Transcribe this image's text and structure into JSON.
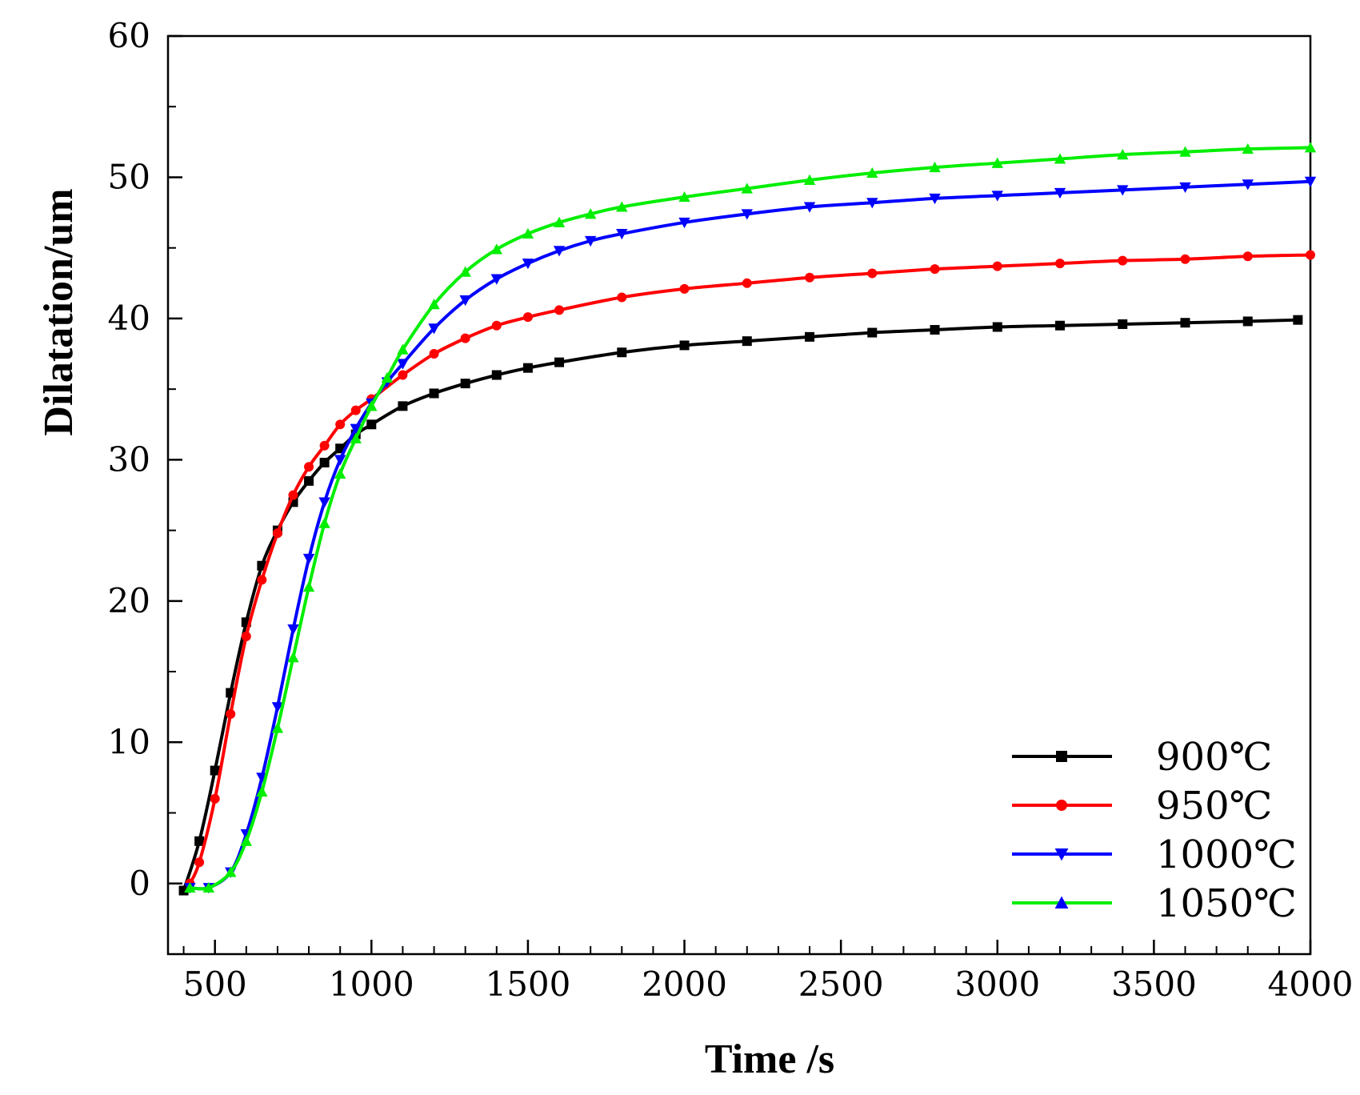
{
  "chart_data": {
    "type": "line",
    "title": "",
    "xlabel": "Time /s",
    "ylabel": "Dilatation/um",
    "xlim": [
      350,
      4000
    ],
    "ylim": [
      -5,
      60
    ],
    "xticks": [
      500,
      1000,
      1500,
      2000,
      2500,
      3000,
      3500,
      4000
    ],
    "yticks": [
      0,
      10,
      20,
      30,
      40,
      50,
      60
    ],
    "grid": false,
    "legend_position": "bottom-right",
    "series": [
      {
        "name": "900℃",
        "color": "#000000",
        "marker": "square",
        "x": [
          400,
          450,
          500,
          550,
          600,
          650,
          700,
          750,
          800,
          850,
          900,
          950,
          1000,
          1100,
          1200,
          1300,
          1400,
          1500,
          1600,
          1800,
          2000,
          2200,
          2400,
          2600,
          2800,
          3000,
          3200,
          3400,
          3600,
          3800,
          3960
        ],
        "y": [
          -0.5,
          3,
          8,
          13.5,
          18.5,
          22.5,
          25,
          27,
          28.5,
          29.8,
          30.8,
          31.8,
          32.5,
          33.8,
          34.7,
          35.4,
          36,
          36.5,
          36.9,
          37.6,
          38.1,
          38.4,
          38.7,
          39,
          39.2,
          39.4,
          39.5,
          39.6,
          39.7,
          39.8,
          39.9
        ]
      },
      {
        "name": "950℃",
        "color": "#ff0000",
        "marker": "circle",
        "x": [
          420,
          450,
          500,
          550,
          600,
          650,
          700,
          750,
          800,
          850,
          900,
          950,
          1000,
          1100,
          1200,
          1300,
          1400,
          1500,
          1600,
          1800,
          2000,
          2200,
          2400,
          2600,
          2800,
          3000,
          3200,
          3400,
          3600,
          3800,
          4000
        ],
        "y": [
          0,
          1.5,
          6,
          12,
          17.5,
          21.5,
          24.8,
          27.5,
          29.5,
          31,
          32.5,
          33.5,
          34.3,
          36,
          37.5,
          38.6,
          39.5,
          40.1,
          40.6,
          41.5,
          42.1,
          42.5,
          42.9,
          43.2,
          43.5,
          43.7,
          43.9,
          44.1,
          44.2,
          44.4,
          44.5
        ]
      },
      {
        "name": "1000℃",
        "color": "#0000ff",
        "marker": "triangle-down",
        "x": [
          420,
          480,
          550,
          600,
          650,
          700,
          750,
          800,
          850,
          900,
          950,
          1000,
          1050,
          1100,
          1200,
          1300,
          1400,
          1500,
          1600,
          1700,
          1800,
          2000,
          2200,
          2400,
          2600,
          2800,
          3000,
          3200,
          3400,
          3600,
          3800,
          4000
        ],
        "y": [
          -0.3,
          -0.3,
          0.8,
          3.5,
          7.5,
          12.5,
          18,
          23,
          27,
          30,
          32.2,
          34,
          35.5,
          36.8,
          39.3,
          41.3,
          42.8,
          43.9,
          44.8,
          45.5,
          46,
          46.8,
          47.4,
          47.9,
          48.2,
          48.5,
          48.7,
          48.9,
          49.1,
          49.3,
          49.5,
          49.7
        ]
      },
      {
        "name": "1050℃",
        "color": "#00ee00",
        "marker": "triangle-up",
        "x": [
          420,
          480,
          550,
          600,
          650,
          700,
          750,
          800,
          850,
          900,
          950,
          1000,
          1050,
          1100,
          1200,
          1300,
          1400,
          1500,
          1600,
          1700,
          1800,
          2000,
          2200,
          2400,
          2600,
          2800,
          3000,
          3200,
          3400,
          3600,
          3800,
          4000
        ],
        "y": [
          -0.3,
          -0.3,
          0.8,
          3,
          6.5,
          11,
          16,
          21,
          25.5,
          29,
          31.5,
          33.8,
          35.8,
          37.8,
          41,
          43.3,
          44.9,
          46,
          46.8,
          47.4,
          47.9,
          48.6,
          49.2,
          49.8,
          50.3,
          50.7,
          51,
          51.3,
          51.6,
          51.8,
          52,
          52.1
        ]
      }
    ]
  }
}
